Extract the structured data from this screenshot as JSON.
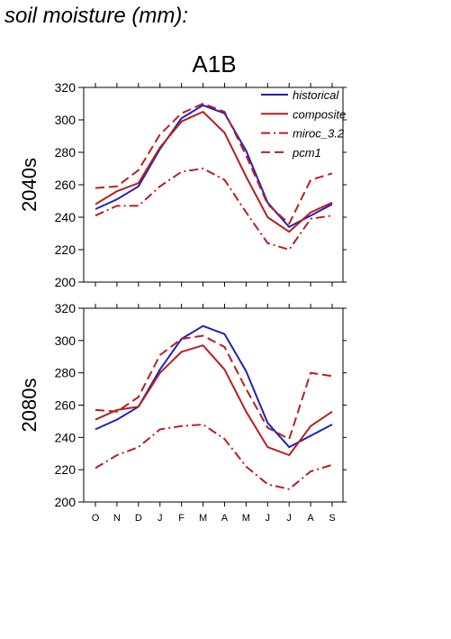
{
  "header": {
    "title": "soil moisture (mm):"
  },
  "colors": {
    "historical": "#1f1fbf",
    "composite": "#b81f1f",
    "miroc_3.2": "#b81f1f",
    "pcm1": "#b81f1f"
  },
  "chart_data": [
    {
      "type": "line",
      "title": "A1B",
      "ylabel": "2040s",
      "categories": [
        "O",
        "N",
        "D",
        "J",
        "F",
        "M",
        "A",
        "M",
        "J",
        "J",
        "A",
        "S"
      ],
      "ylim": [
        200,
        320
      ],
      "yticks": [
        200,
        220,
        240,
        260,
        280,
        300,
        320
      ],
      "legend_position": "top-right",
      "series": [
        {
          "name": "historical",
          "style": "solid",
          "color": "#1f1fbf",
          "values": [
            245,
            251,
            259,
            282,
            301,
            309,
            304,
            281,
            249,
            234,
            241,
            248
          ]
        },
        {
          "name": "composite",
          "style": "solid",
          "color": "#b81f1f",
          "values": [
            248,
            256,
            261,
            283,
            299,
            305,
            292,
            265,
            240,
            231,
            243,
            249
          ]
        },
        {
          "name": "miroc_3.2",
          "style": "dashdot",
          "color": "#b81f1f",
          "values": [
            241,
            247,
            247,
            259,
            268,
            270,
            263,
            243,
            224,
            220,
            239,
            241
          ]
        },
        {
          "name": "pcm1",
          "style": "dash",
          "color": "#b81f1f",
          "values": [
            258,
            259,
            269,
            291,
            304,
            310,
            305,
            278,
            248,
            236,
            263,
            267
          ]
        }
      ]
    },
    {
      "type": "line",
      "title": "",
      "ylabel": "2080s",
      "categories": [
        "O",
        "N",
        "D",
        "J",
        "F",
        "M",
        "A",
        "M",
        "J",
        "J",
        "A",
        "S"
      ],
      "ylim": [
        200,
        320
      ],
      "yticks": [
        200,
        220,
        240,
        260,
        280,
        300,
        320
      ],
      "series": [
        {
          "name": "historical",
          "style": "solid",
          "color": "#1f1fbf",
          "values": [
            245,
            251,
            259,
            282,
            301,
            309,
            304,
            281,
            249,
            234,
            241,
            248
          ]
        },
        {
          "name": "composite",
          "style": "solid",
          "color": "#b81f1f",
          "values": [
            251,
            257,
            259,
            280,
            293,
            297,
            282,
            256,
            234,
            229,
            247,
            256
          ]
        },
        {
          "name": "miroc_3.2",
          "style": "dashdot",
          "color": "#b81f1f",
          "values": [
            221,
            229,
            234,
            245,
            247,
            248,
            239,
            222,
            211,
            208,
            219,
            223
          ]
        },
        {
          "name": "pcm1",
          "style": "dash",
          "color": "#b81f1f",
          "values": [
            257,
            256,
            265,
            291,
            301,
            303,
            296,
            270,
            246,
            239,
            280,
            278
          ]
        }
      ]
    }
  ]
}
